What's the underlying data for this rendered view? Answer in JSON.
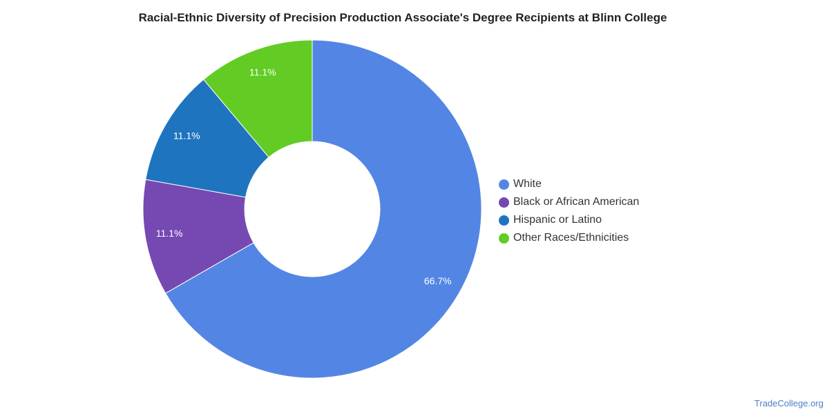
{
  "chart_data": {
    "type": "pie",
    "style": "donut",
    "title": "Racial-Ethnic Diversity of Precision Production Associate's Degree Recipients at Blinn College",
    "slices": [
      {
        "label": "White",
        "value": 66.7,
        "display": "66.7%",
        "color": "#5386e4"
      },
      {
        "label": "Black or African American",
        "value": 11.1,
        "display": "11.1%",
        "color": "#7649b2"
      },
      {
        "label": "Hispanic or Latino",
        "value": 11.1,
        "display": "11.1%",
        "color": "#1f74c0"
      },
      {
        "label": "Other Races/Ethnicities",
        "value": 11.1,
        "display": "11.1%",
        "color": "#62cc24"
      }
    ],
    "legend_position": "right"
  },
  "credit": "TradeCollege.org"
}
